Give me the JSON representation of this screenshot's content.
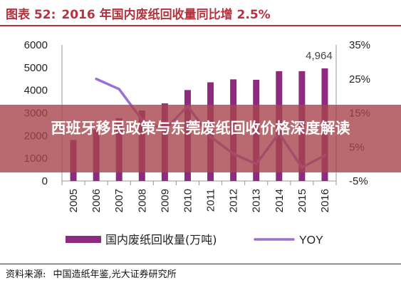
{
  "figure": {
    "label": "图表 52:",
    "title": "2016 年国内废纸回收量同比增 2.5%"
  },
  "overlay": {
    "headline": "西班牙移民政策与东莞废纸回收价格深度解读"
  },
  "source": {
    "label": "资料来源:",
    "text": "中国造纸年鉴,光大证券研究所"
  },
  "colors": {
    "bar": "#8e2b7f",
    "line": "#9b6fd6",
    "title": "#b5323f",
    "banner": "#a8444c"
  },
  "chart_data": {
    "type": "bar",
    "categories": [
      "2005",
      "2006",
      "2007",
      "2008",
      "2009",
      "2010",
      "2011",
      "2012",
      "2013",
      "2014",
      "2015",
      "2016"
    ],
    "series": [
      {
        "name": "国内废纸回收量(万吨)",
        "type": "bar",
        "axis": "left",
        "values": [
          1810,
          2260,
          2770,
          3110,
          3420,
          4010,
          4350,
          4480,
          4460,
          4840,
          4840,
          4964
        ]
      },
      {
        "name": "YOY",
        "type": "line",
        "axis": "right",
        "values": [
          null,
          25,
          22,
          13,
          10,
          17,
          8,
          3,
          0,
          9,
          -1,
          2.5
        ]
      }
    ],
    "data_labels": [
      {
        "category": "2016",
        "text": "4,964"
      }
    ],
    "y_left": {
      "min": 0,
      "max": 6000,
      "ticks": [
        "0",
        "1000",
        "2000",
        "3000",
        "4000",
        "5000",
        "6000"
      ]
    },
    "y_right": {
      "min": -5,
      "max": 35,
      "ticks": [
        "-5%",
        "5%",
        "15%",
        "25%",
        "35%"
      ]
    },
    "grid": false,
    "legend_position": "bottom"
  }
}
